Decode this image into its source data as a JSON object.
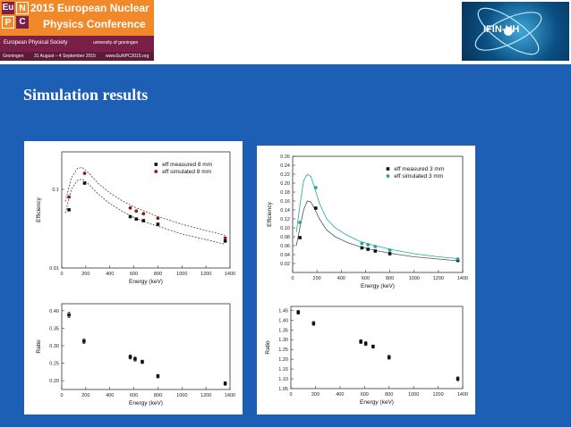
{
  "slide": {
    "title": "Simulation results",
    "banner": {
      "tiles": [
        "Eu",
        "N",
        "P",
        "C"
      ],
      "title_line1": "2015 European Nuclear",
      "title_line2": "Physics Conference",
      "org": "European Physical Society",
      "host": "university of groningen",
      "footer_left": "Groningen",
      "footer_dates": "31 August – 4 September 2015",
      "footer_url": "www.EuNPC2015.org"
    },
    "logo_text": "IFIN-HH"
  },
  "chart_data": [
    {
      "type": "scatter",
      "xlabel": "Energy (keV)",
      "ylabel": "Efficiency",
      "xlim": [
        0,
        1400
      ],
      "ylim": [
        0.01,
        0.3
      ],
      "yscale": "log",
      "xticks": [
        0,
        200,
        400,
        600,
        800,
        1000,
        1200,
        1400
      ],
      "yticks": [
        0.01,
        0.1
      ],
      "ytick_labels": [
        "0.01",
        "0.1"
      ],
      "legend_position": "top-right",
      "series": [
        {
          "name": "eff measured 8 mm",
          "color": "#111111",
          "x": [
            60,
            190,
            570,
            620,
            680,
            800,
            1360
          ],
          "y": [
            0.055,
            0.12,
            0.045,
            0.042,
            0.04,
            0.036,
            0.022
          ]
        },
        {
          "name": "eff simulated 8 mm",
          "color": "#8b1a1a",
          "x": [
            60,
            190,
            570,
            620,
            680,
            800,
            1360
          ],
          "y": [
            0.08,
            0.16,
            0.058,
            0.053,
            0.049,
            0.043,
            0.024
          ]
        }
      ],
      "curves": [
        {
          "x": [
            30,
            80,
            130,
            170,
            220,
            300,
            400,
            500,
            600,
            700,
            800,
            1000,
            1200,
            1360
          ],
          "y": [
            0.07,
            0.14,
            0.185,
            0.19,
            0.165,
            0.12,
            0.09,
            0.072,
            0.06,
            0.052,
            0.045,
            0.036,
            0.03,
            0.026
          ]
        },
        {
          "x": [
            30,
            80,
            130,
            170,
            220,
            300,
            400,
            500,
            600,
            700,
            800,
            1000,
            1200,
            1360
          ],
          "y": [
            0.05,
            0.1,
            0.13,
            0.135,
            0.118,
            0.088,
            0.066,
            0.053,
            0.044,
            0.038,
            0.034,
            0.027,
            0.023,
            0.02
          ]
        }
      ]
    },
    {
      "type": "scatter",
      "xlabel": "Energy (keV)",
      "ylabel": "Efficiency",
      "xlim": [
        0,
        1400
      ],
      "ylim": [
        0,
        0.26
      ],
      "xticks": [
        0,
        200,
        400,
        600,
        800,
        1000,
        1200,
        1400
      ],
      "yticks": [
        0.02,
        0.04,
        0.06,
        0.08,
        0.1,
        0.12,
        0.14,
        0.16,
        0.18,
        0.2,
        0.22,
        0.24,
        0.26
      ],
      "ytick_labels": [
        "0.02",
        "0.04",
        "0.06",
        "0.08",
        "0.10",
        "0.12",
        "0.14",
        "0.16",
        "0.18",
        "0.20",
        "0.22",
        "0.24",
        "0.26"
      ],
      "legend_position": "top-right",
      "series": [
        {
          "name": "eff measured 3 mm",
          "color": "#111111",
          "x": [
            60,
            190,
            570,
            620,
            680,
            800,
            1360
          ],
          "y": [
            0.078,
            0.144,
            0.055,
            0.052,
            0.048,
            0.042,
            0.027
          ]
        },
        {
          "name": "eff simulated 3 mm",
          "color": "#1fa79a",
          "x": [
            60,
            190,
            570,
            620,
            680,
            800,
            1360
          ],
          "y": [
            0.112,
            0.19,
            0.065,
            0.062,
            0.058,
            0.05,
            0.03
          ]
        }
      ],
      "curves": [
        {
          "color": "#1fa79a",
          "x": [
            30,
            60,
            90,
            120,
            150,
            180,
            220,
            280,
            350,
            450,
            550,
            650,
            800,
            1000,
            1200,
            1360
          ],
          "y": [
            0.09,
            0.15,
            0.205,
            0.22,
            0.215,
            0.19,
            0.155,
            0.12,
            0.1,
            0.083,
            0.07,
            0.062,
            0.052,
            0.042,
            0.035,
            0.031
          ]
        },
        {
          "color": "#555555",
          "x": [
            30,
            60,
            90,
            120,
            150,
            180,
            220,
            280,
            350,
            450,
            550,
            650,
            800,
            1000,
            1200,
            1360
          ],
          "y": [
            0.06,
            0.1,
            0.14,
            0.16,
            0.158,
            0.143,
            0.12,
            0.095,
            0.08,
            0.067,
            0.058,
            0.051,
            0.043,
            0.035,
            0.03,
            0.026
          ]
        }
      ]
    },
    {
      "type": "scatter",
      "xlabel": "Energy (keV)",
      "ylabel": "Ratio",
      "xlim": [
        0,
        1400
      ],
      "ylim": [
        0.175,
        0.42
      ],
      "xticks": [
        0,
        200,
        400,
        600,
        800,
        1000,
        1200,
        1400
      ],
      "yticks": [
        0.2,
        0.25,
        0.3,
        0.35,
        0.4
      ],
      "ytick_labels": [
        "0.20",
        "0.25",
        "0.30",
        "0.35",
        "0.40"
      ],
      "series": [
        {
          "name": "",
          "color": "#111111",
          "x": [
            60,
            185,
            570,
            610,
            670,
            800,
            1360
          ],
          "y": [
            0.388,
            0.313,
            0.268,
            0.262,
            0.254,
            0.213,
            0.192
          ],
          "err": [
            0.008,
            0.007,
            0.006,
            0.006,
            0.005,
            0.005,
            0.005
          ]
        }
      ]
    },
    {
      "type": "scatter",
      "xlabel": "Energy (keV)",
      "ylabel": "Ratio",
      "xlim": [
        0,
        1400
      ],
      "ylim": [
        1.05,
        1.47
      ],
      "xticks": [
        0,
        200,
        400,
        600,
        800,
        1000,
        1200,
        1400
      ],
      "yticks": [
        1.05,
        1.1,
        1.15,
        1.2,
        1.25,
        1.3,
        1.35,
        1.4,
        1.45
      ],
      "ytick_labels": [
        "1.05",
        "1.10",
        "1.15",
        "1.20",
        "1.25",
        "1.30",
        "1.35",
        "1.40",
        "1.45"
      ],
      "series": [
        {
          "name": "",
          "color": "#111111",
          "x": [
            60,
            185,
            570,
            610,
            670,
            800,
            1360
          ],
          "y": [
            1.44,
            1.383,
            1.29,
            1.28,
            1.265,
            1.21,
            1.1
          ],
          "err": [
            0.01,
            0.01,
            0.01,
            0.01,
            0.008,
            0.01,
            0.01
          ]
        }
      ]
    }
  ]
}
